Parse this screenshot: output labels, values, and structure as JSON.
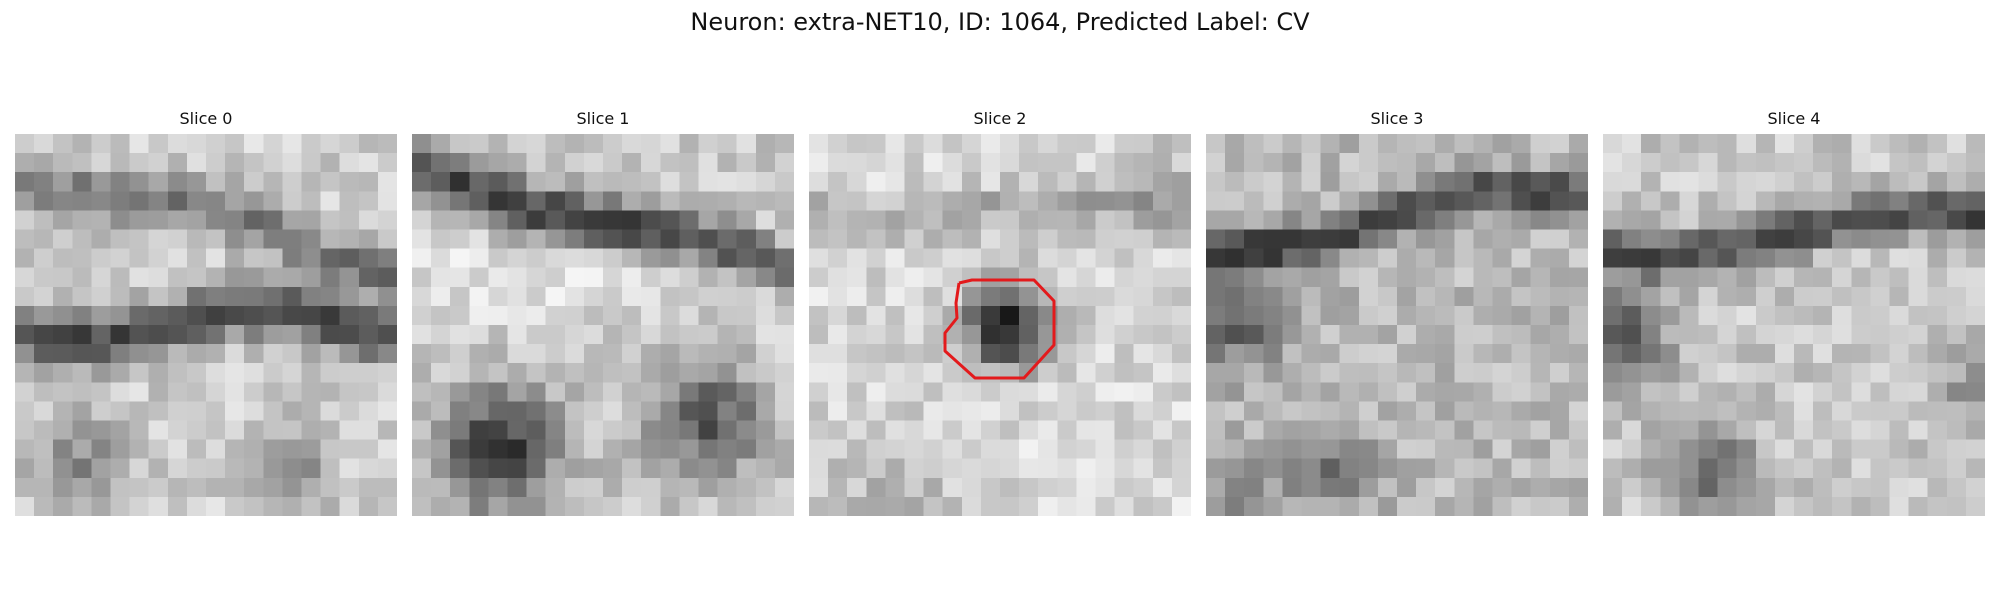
{
  "figure": {
    "title": "Neuron: extra-NET10, ID: 1064, Predicted Label: CV"
  },
  "slices": [
    {
      "label": "Slice 0"
    },
    {
      "label": "Slice 1"
    },
    {
      "label": "Slice 2"
    },
    {
      "label": "Slice 3"
    },
    {
      "label": "Slice 4"
    }
  ],
  "roi": {
    "slice_label": "Slice 2",
    "color": "#e31a1c"
  },
  "colormap": "gray"
}
